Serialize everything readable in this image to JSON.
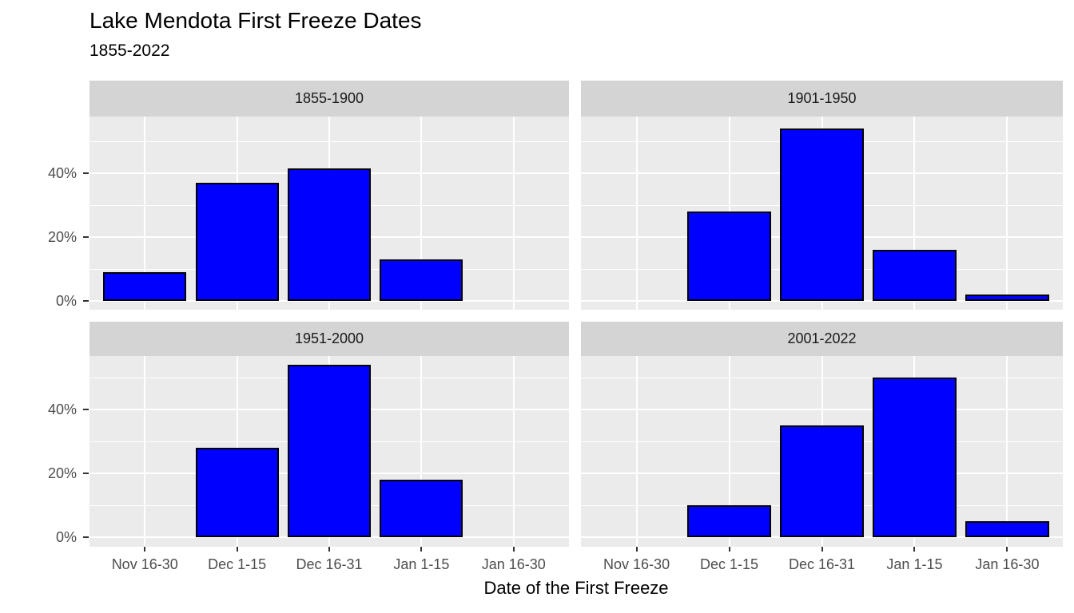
{
  "title": "Lake Mendota First Freeze Dates",
  "subtitle": "1855-2022",
  "chart_data": {
    "type": "bar",
    "layout": "facet_wrap_2x2",
    "title": "Lake Mendota First Freeze Dates",
    "subtitle": "1855-2022",
    "xlabel": "Date of the First Freeze",
    "ylabel": "",
    "categories": [
      "Nov 16-30",
      "Dec 1-15",
      "Dec 16-31",
      "Jan 1-15",
      "Jan 16-30"
    ],
    "y_unit": "percent",
    "y_ticks": [
      0,
      20,
      40
    ],
    "y_tick_labels": [
      "0%",
      "20%",
      "40%"
    ],
    "y_minor_ticks": [
      10,
      30,
      50
    ],
    "ylim": [
      0,
      57
    ],
    "grid": "white-on-gray",
    "legend": "none",
    "facets": [
      {
        "label": "1855-1900",
        "values": [
          9,
          37,
          41.5,
          13,
          0
        ]
      },
      {
        "label": "1901-1950",
        "values": [
          0,
          28,
          54,
          16,
          2
        ]
      },
      {
        "label": "1951-2000",
        "values": [
          0,
          28,
          54,
          18,
          0
        ]
      },
      {
        "label": "2001-2022",
        "values": [
          0,
          10,
          35,
          50,
          5
        ]
      }
    ],
    "colors": {
      "bar_fill": "#0000ff",
      "bar_stroke": "#000000",
      "panel_bg": "#ebebeb",
      "strip_bg": "#d4d4d4",
      "gridline": "#ffffff",
      "tick_label": "#4d4d4d",
      "text": "#000000"
    }
  }
}
